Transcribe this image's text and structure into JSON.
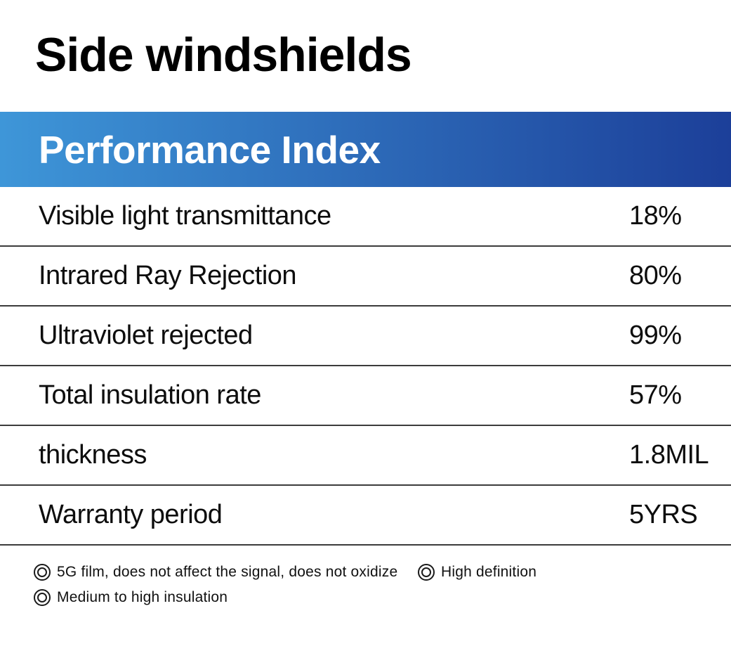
{
  "page": {
    "title": "Side windshields"
  },
  "table": {
    "header": "Performance Index",
    "rows": [
      {
        "label": "Visible light transmittance",
        "value": "18%"
      },
      {
        "label": "Intrared Ray Rejection",
        "value": "80%"
      },
      {
        "label": "Ultraviolet rejected",
        "value": "99%"
      },
      {
        "label": "Total insulation rate",
        "value": "57%"
      },
      {
        "label": "thickness",
        "value": "1.8MIL"
      },
      {
        "label": "Warranty period",
        "value": "5YRS"
      }
    ]
  },
  "features": [
    {
      "icon": "double-circle-icon",
      "label": "5G film, does not affect the signal, does not oxidize"
    },
    {
      "icon": "double-circle-icon",
      "label": "High definition"
    },
    {
      "icon": "double-circle-icon",
      "label": "Medium to high insulation"
    }
  ],
  "colors": {
    "header_gradient_start": "#3E96D8",
    "header_gradient_end": "#1C3F99",
    "header_text": "#FFFFFF",
    "divider": "#3C3C3C",
    "text": "#0D0D0D"
  }
}
